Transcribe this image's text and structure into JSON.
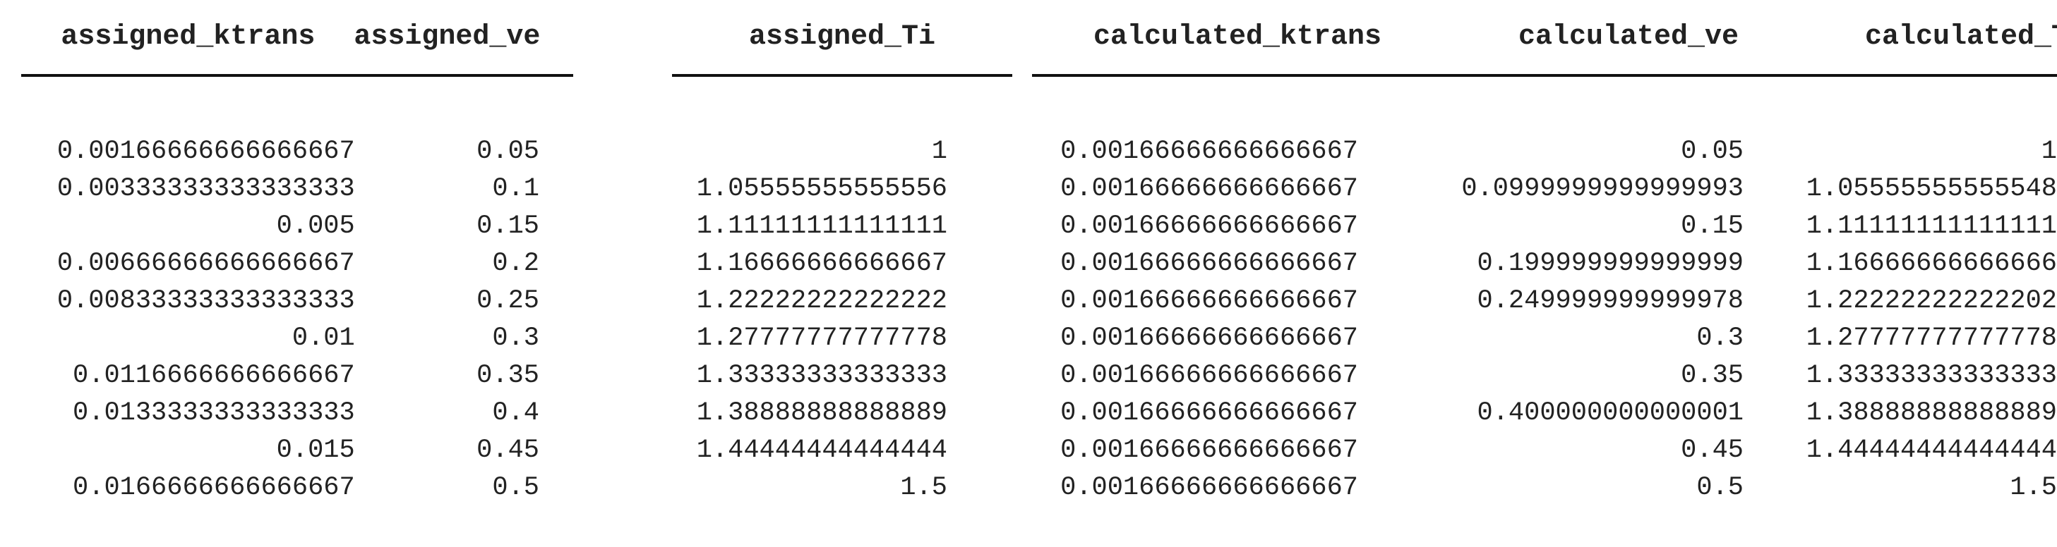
{
  "table": {
    "columns": [
      "assigned_ktrans",
      "assigned_ve",
      "assigned_Ti",
      "calculated_ktrans",
      "calculated_ve",
      "calculated_Ti"
    ],
    "rows": [
      [
        "0.00166666666666667",
        "0.05",
        "1",
        "0.00166666666666667",
        "0.05",
        "1"
      ],
      [
        "0.00333333333333333",
        "0.1",
        "1.05555555555556",
        "0.00166666666666667",
        "0.0999999999999993",
        "1.05555555555548"
      ],
      [
        "0.005",
        "0.15",
        "1.11111111111111",
        "0.00166666666666667",
        "0.15",
        "1.11111111111111"
      ],
      [
        "0.00666666666666667",
        "0.2",
        "1.16666666666667",
        "0.00166666666666667",
        "0.199999999999999",
        "1.16666666666666"
      ],
      [
        "0.00833333333333333",
        "0.25",
        "1.22222222222222",
        "0.00166666666666667",
        "0.249999999999978",
        "1.22222222222202"
      ],
      [
        "0.01",
        "0.3",
        "1.27777777777778",
        "0.00166666666666667",
        "0.3",
        "1.27777777777778"
      ],
      [
        "0.0116666666666667",
        "0.35",
        "1.33333333333333",
        "0.00166666666666667",
        "0.35",
        "1.33333333333333"
      ],
      [
        "0.0133333333333333",
        "0.4",
        "1.38888888888889",
        "0.00166666666666667",
        "0.400000000000001",
        "1.38888888888889"
      ],
      [
        "0.015",
        "0.45",
        "1.44444444444444",
        "0.00166666666666667",
        "0.45",
        "1.44444444444444"
      ],
      [
        "0.0166666666666667",
        "0.5",
        "1.5",
        "0.00166666666666667",
        "0.5",
        "1.5"
      ]
    ]
  }
}
